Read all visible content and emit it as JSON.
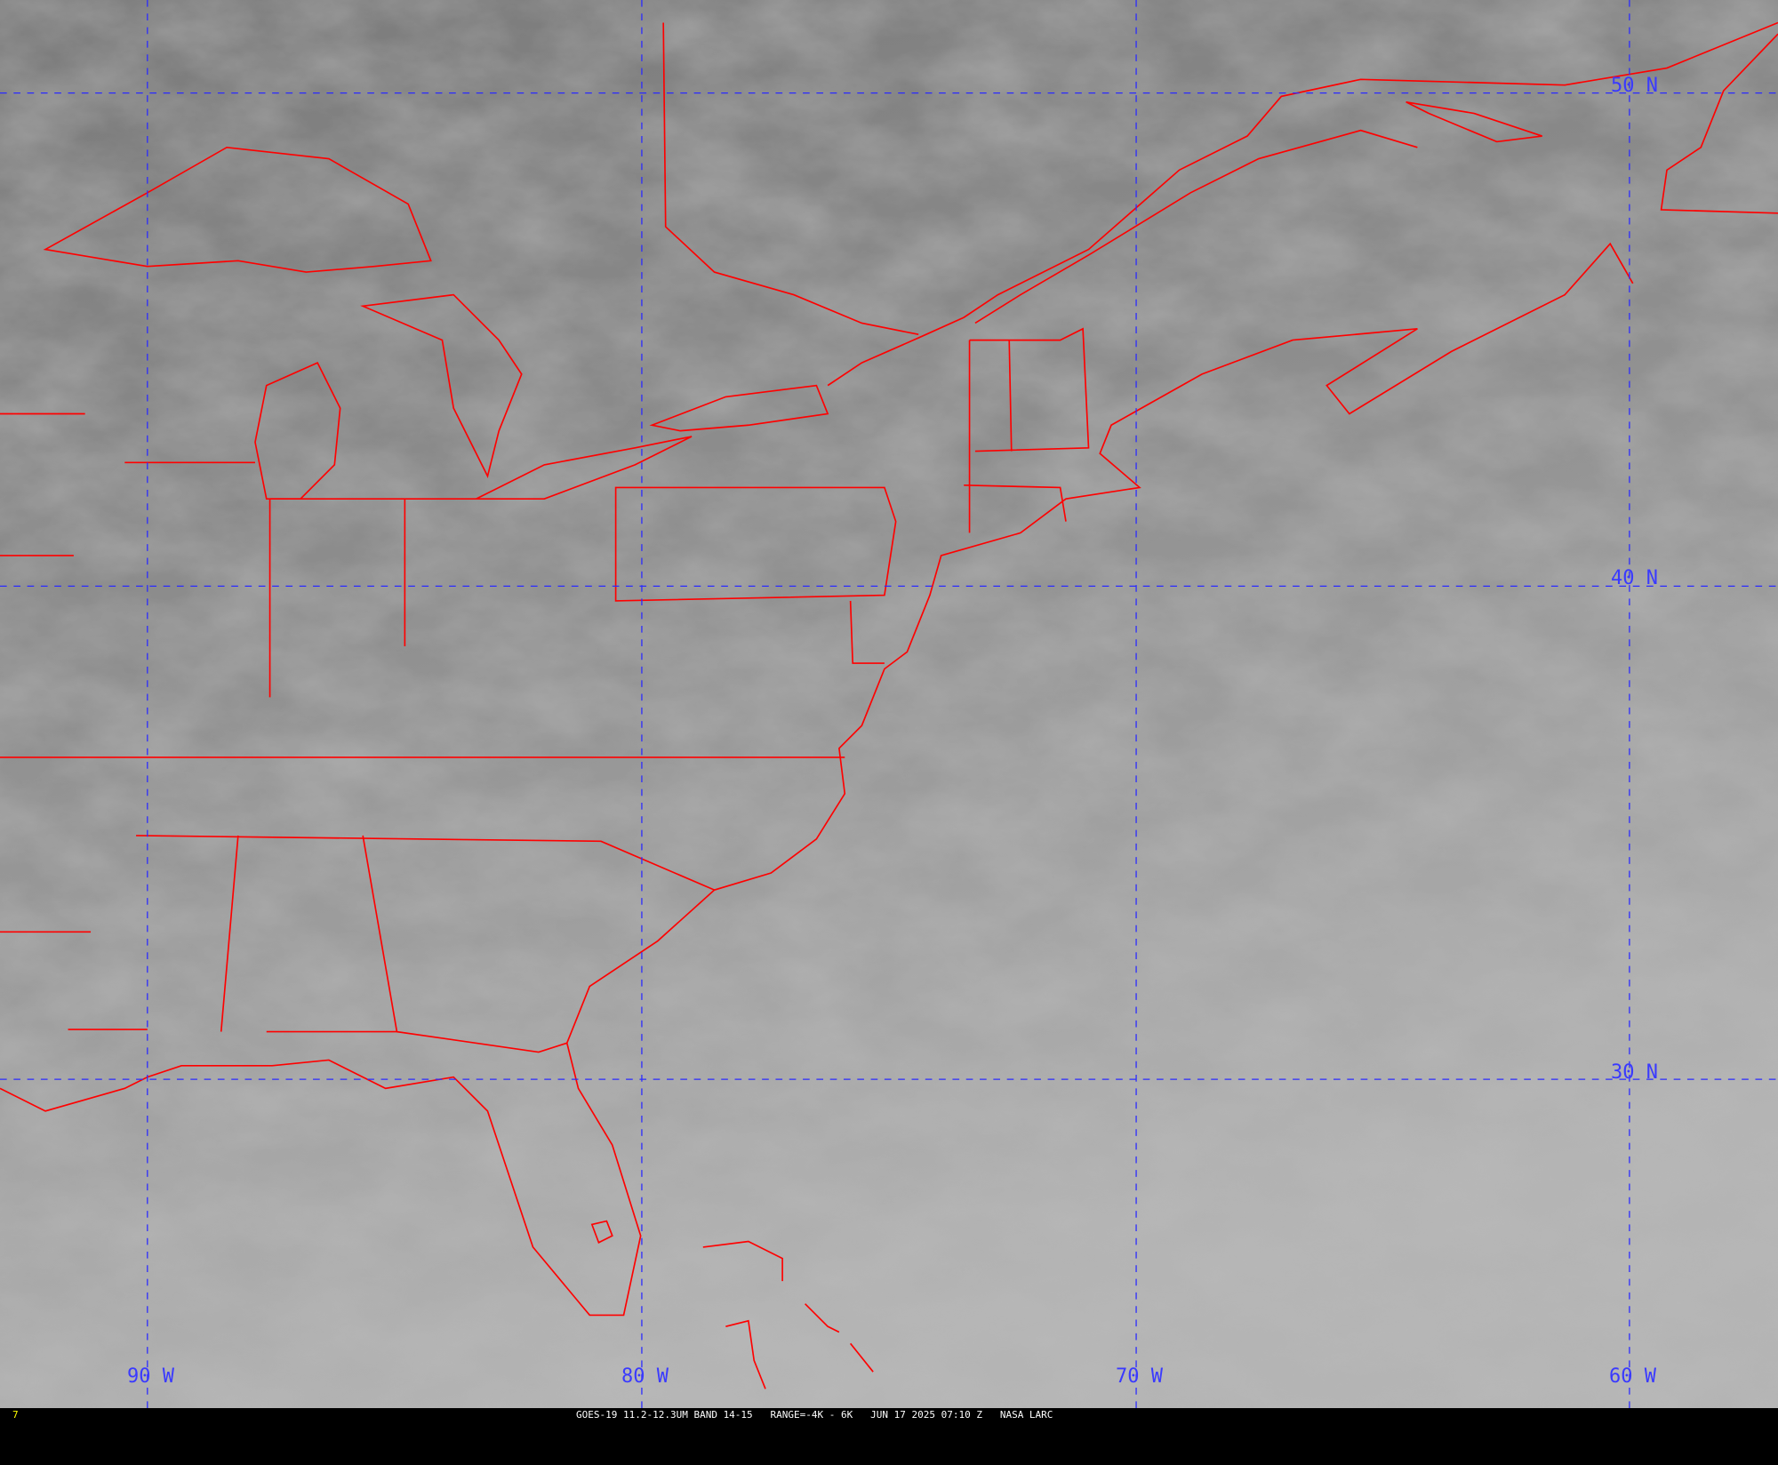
{
  "colors": {
    "boundary": "#ff0000",
    "grid": "#2a2aff",
    "label": "#3a3aff",
    "frame_number": "#ffff00"
  },
  "grid_labels": {
    "lon": [
      "90 W",
      "80 W",
      "70 W",
      "60 W"
    ],
    "lat": [
      "50 N",
      "40 N",
      "30 N"
    ]
  },
  "caption": {
    "frame_number": "7",
    "text": "GOES-19 11.2-12.3UM BAND 14-15   RANGE=-4K - 6K   JUN 17 2025 07:10 Z   NASA LARC"
  }
}
